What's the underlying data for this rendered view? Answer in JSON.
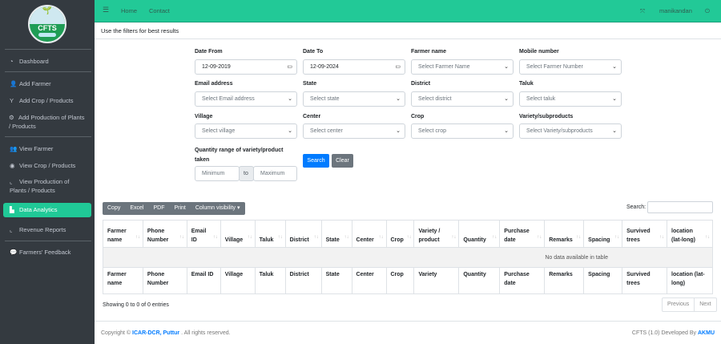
{
  "logo": {
    "text": "CFTS"
  },
  "sidebar": {
    "items": [
      {
        "label": "Dashboard",
        "icon": "gauge-icon"
      },
      {
        "label": "Add Farmer",
        "icon": "user-plus-icon"
      },
      {
        "label": "Add Crop / Products",
        "icon": "seedling-icon"
      },
      {
        "label": "Add Production of Plants / Products",
        "icon": "tractor-icon"
      },
      {
        "label": "View Farmer",
        "icon": "users-icon"
      },
      {
        "label": "View Crop / Products",
        "icon": "eye-icon"
      },
      {
        "label": "View Production of Plants / Products",
        "icon": "chart-line-icon"
      },
      {
        "label": "Data Analytics",
        "icon": "chart-bar-icon",
        "active": true
      },
      {
        "label": "Revenue Reports",
        "icon": "chart-line-icon"
      },
      {
        "label": "Farmers' Feedback",
        "icon": "comments-icon"
      }
    ]
  },
  "topbar": {
    "home": "Home",
    "contact": "Contact",
    "user": "manikandan"
  },
  "hint": "Use the filters for best results",
  "filters": {
    "date_from": {
      "label": "Date From",
      "value": "12-09-2019"
    },
    "date_to": {
      "label": "Date To",
      "value": "12-09-2024"
    },
    "farmer_name": {
      "label": "Farmer name",
      "placeholder": "Select Farmer Name"
    },
    "mobile": {
      "label": "Mobile number",
      "placeholder": "Select Farmer Number"
    },
    "email": {
      "label": "Email address",
      "placeholder": "Select Email address"
    },
    "state": {
      "label": "State",
      "placeholder": "Select state"
    },
    "district": {
      "label": "District",
      "placeholder": "Select district"
    },
    "taluk": {
      "label": "Taluk",
      "placeholder": "Select taluk"
    },
    "village": {
      "label": "Village",
      "placeholder": "Select village"
    },
    "center": {
      "label": "Center",
      "placeholder": "Select center"
    },
    "crop": {
      "label": "Crop",
      "placeholder": "Select crop"
    },
    "variety": {
      "label": "Variety/subproducts",
      "placeholder": "Select Variety/subproducts"
    },
    "quantity": {
      "label": "Quantity range of variety/product taken",
      "min": "Minimum",
      "to": "to",
      "max": "Maximum"
    },
    "search": "Search",
    "clear": "Clear"
  },
  "table": {
    "buttons": [
      "Copy",
      "Excel",
      "PDF",
      "Print",
      "Column visibility ▾"
    ],
    "search_label": "Search:",
    "headers": [
      "Farmer name",
      "Phone Number",
      "Email ID",
      "Village",
      "Taluk",
      "District",
      "State",
      "Center",
      "Crop",
      "Variety / product",
      "Quantity",
      "Purchase date",
      "Remarks",
      "Spacing",
      "Survived trees",
      "location (lat-long)"
    ],
    "footers": [
      "Farmer name",
      "Phone Number",
      "Email ID",
      "Village",
      "Taluk",
      "District",
      "State",
      "Center",
      "Crop",
      "Variety",
      "Quantity",
      "Purchase date",
      "Remarks",
      "Spacing",
      "Survived trees",
      "location (lat-long)"
    ],
    "empty": "No data available in table",
    "info": "Showing 0 to 0 of 0 entries",
    "prev": "Previous",
    "next": "Next"
  },
  "footer": {
    "copyright": "Copyright ©",
    "org": "ICAR-DCR, Puttur",
    "rights": ". All rights reserved.",
    "version": "CFTS (1.0) Developed By",
    "dev": "AKMU"
  }
}
